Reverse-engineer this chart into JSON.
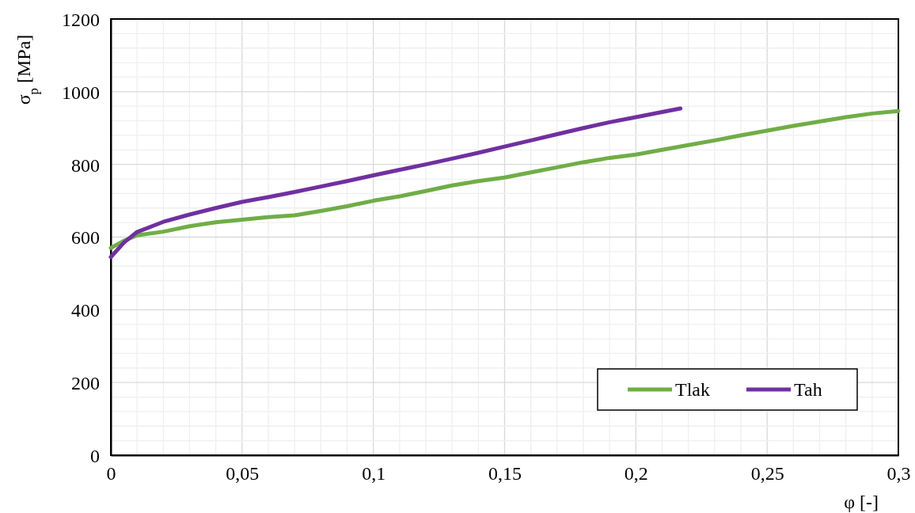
{
  "chart_data": {
    "type": "line",
    "xlabel": "φ [-]",
    "ylabel": "σ$_{p}$ [MPa]",
    "xlim": [
      0,
      0.3
    ],
    "ylim": [
      0,
      1200
    ],
    "xticks": [
      0,
      {
        "value": 0.01,
        "label": null
      },
      {
        "value": 0.02,
        "label": null
      },
      {
        "value": 0.03,
        "label": null
      },
      {
        "value": 0.04,
        "label": null
      },
      {
        "value": 0.05,
        "label": "0,05"
      },
      {
        "value": 0.06,
        "label": null
      },
      {
        "value": 0.07,
        "label": null
      },
      {
        "value": 0.08,
        "label": null
      },
      {
        "value": 0.09,
        "label": null
      },
      {
        "value": 0.1,
        "label": "0,1"
      },
      {
        "value": 0.11,
        "label": null
      },
      {
        "value": 0.12,
        "label": null
      },
      {
        "value": 0.13,
        "label": null
      },
      {
        "value": 0.14,
        "label": null
      },
      {
        "value": 0.15,
        "label": "0,15"
      },
      {
        "value": 0.16,
        "label": null
      },
      {
        "value": 0.17,
        "label": null
      },
      {
        "value": 0.18,
        "label": null
      },
      {
        "value": 0.19,
        "label": null
      },
      {
        "value": 0.2,
        "label": "0,2"
      },
      {
        "value": 0.21,
        "label": null
      },
      {
        "value": 0.22,
        "label": null
      },
      {
        "value": 0.23,
        "label": null
      },
      {
        "value": 0.24,
        "label": null
      },
      {
        "value": 0.25,
        "label": "0,25"
      },
      {
        "value": 0.26,
        "label": null
      },
      {
        "value": 0.27,
        "label": null
      },
      {
        "value": 0.28,
        "label": null
      },
      {
        "value": 0.29,
        "label": null
      },
      {
        "value": 0.3,
        "label": "0,3"
      }
    ],
    "yticks": [
      0,
      {
        "value": 40,
        "label": null
      },
      {
        "value": 80,
        "label": null
      },
      {
        "value": 120,
        "label": null
      },
      {
        "value": 160,
        "label": null
      },
      200,
      {
        "value": 240,
        "label": null
      },
      {
        "value": 280,
        "label": null
      },
      {
        "value": 320,
        "label": null
      },
      {
        "value": 360,
        "label": null
      },
      400,
      {
        "value": 440,
        "label": null
      },
      {
        "value": 480,
        "label": null
      },
      {
        "value": 520,
        "label": null
      },
      {
        "value": 560,
        "label": null
      },
      600,
      {
        "value": 640,
        "label": null
      },
      {
        "value": 680,
        "label": null
      },
      {
        "value": 720,
        "label": null
      },
      {
        "value": 760,
        "label": null
      },
      800,
      {
        "value": 840,
        "label": null
      },
      {
        "value": 880,
        "label": null
      },
      {
        "value": 920,
        "label": null
      },
      {
        "value": 960,
        "label": null
      },
      1000,
      {
        "value": 1040,
        "label": null
      },
      {
        "value": 1080,
        "label": null
      },
      {
        "value": 1120,
        "label": null
      },
      {
        "value": 1160,
        "label": null
      },
      1200
    ],
    "grid": true,
    "legend": "bottom right",
    "marker": "none",
    "line_style": "solid",
    "series": [
      {
        "name": "Tlak",
        "color": "#70ad47",
        "x": [
          0,
          0.005,
          0.01,
          0.02,
          0.03,
          0.04,
          0.05,
          0.06,
          0.07,
          0.08,
          0.09,
          0.1,
          0.11,
          0.12,
          0.13,
          0.14,
          0.15,
          0.16,
          0.17,
          0.18,
          0.19,
          0.2,
          0.21,
          0.22,
          0.23,
          0.24,
          0.25,
          0.26,
          0.27,
          0.28,
          0.29,
          0.3
        ],
        "values": [
          570,
          590,
          605,
          615,
          630,
          641,
          648,
          655,
          660,
          672,
          685,
          700,
          712,
          727,
          742,
          754,
          764,
          778,
          792,
          806,
          818,
          827,
          840,
          853,
          866,
          880,
          893,
          906,
          918,
          930,
          940,
          947
        ]
      },
      {
        "name": "Tah",
        "color": "#7030a0",
        "x": [
          0,
          0.005,
          0.01,
          0.02,
          0.03,
          0.04,
          0.05,
          0.06,
          0.07,
          0.08,
          0.09,
          0.1,
          0.11,
          0.12,
          0.13,
          0.14,
          0.15,
          0.16,
          0.17,
          0.18,
          0.19,
          0.2,
          0.21,
          0.217
        ],
        "values": [
          545,
          585,
          614,
          642,
          662,
          680,
          697,
          710,
          724,
          739,
          754,
          770,
          785,
          800,
          816,
          832,
          849,
          866,
          883,
          900,
          916,
          930,
          944,
          954
        ]
      }
    ]
  }
}
